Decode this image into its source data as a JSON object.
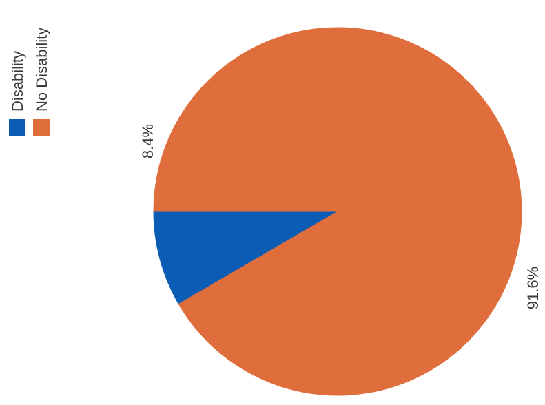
{
  "chart_data": {
    "type": "pie",
    "title": "",
    "categories": [
      "Disability",
      "No Disability"
    ],
    "values": [
      8.4,
      91.6
    ],
    "data_labels": [
      "8.4%",
      "91.6%"
    ],
    "unit": "%",
    "colors": [
      "#0b5cb5",
      "#df6e3c"
    ],
    "legend": {
      "placement": "top-left",
      "orientation": "rotated-vertical",
      "entries": [
        "Disability",
        "No Disability"
      ]
    }
  }
}
